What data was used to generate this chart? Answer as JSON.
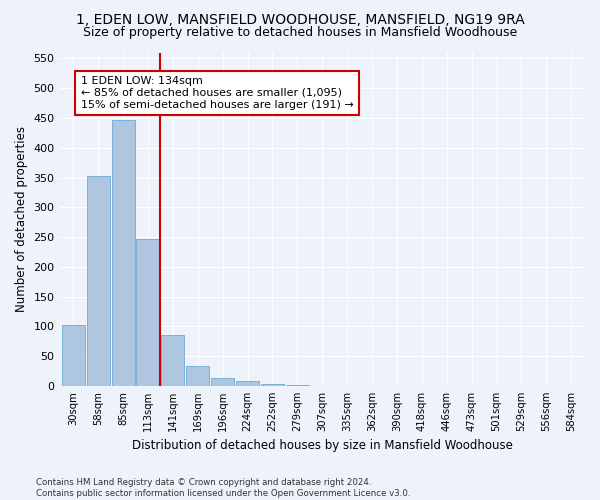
{
  "title_line1": "1, EDEN LOW, MANSFIELD WOODHOUSE, MANSFIELD, NG19 9RA",
  "title_line2": "Size of property relative to detached houses in Mansfield Woodhouse",
  "xlabel": "Distribution of detached houses by size in Mansfield Woodhouse",
  "ylabel": "Number of detached properties",
  "footnote": "Contains HM Land Registry data © Crown copyright and database right 2024.\nContains public sector information licensed under the Open Government Licence v3.0.",
  "categories": [
    "30sqm",
    "58sqm",
    "85sqm",
    "113sqm",
    "141sqm",
    "169sqm",
    "196sqm",
    "224sqm",
    "252sqm",
    "279sqm",
    "307sqm",
    "335sqm",
    "362sqm",
    "390sqm",
    "418sqm",
    "446sqm",
    "473sqm",
    "501sqm",
    "529sqm",
    "556sqm",
    "584sqm"
  ],
  "values": [
    102,
    353,
    447,
    247,
    86,
    34,
    14,
    8,
    4,
    2,
    0,
    0,
    0,
    0,
    0,
    0,
    0,
    0,
    0,
    0,
    0
  ],
  "bar_color": "#aec6e0",
  "bar_edge_color": "#6aaad4",
  "vline_color": "#cc0000",
  "vline_index": 3.5,
  "annotation_title": "1 EDEN LOW: 134sqm",
  "annotation_line1": "← 85% of detached houses are smaller (1,095)",
  "annotation_line2": "15% of semi-detached houses are larger (191) →",
  "annotation_box_color": "#ffffff",
  "annotation_box_edge": "#cc0000",
  "ylim": [
    0,
    560
  ],
  "yticks": [
    0,
    50,
    100,
    150,
    200,
    250,
    300,
    350,
    400,
    450,
    500,
    550
  ],
  "bg_color": "#edf2fb",
  "grid_color": "#ffffff",
  "title_fontsize": 10,
  "subtitle_fontsize": 9,
  "title_fontweight": "normal"
}
